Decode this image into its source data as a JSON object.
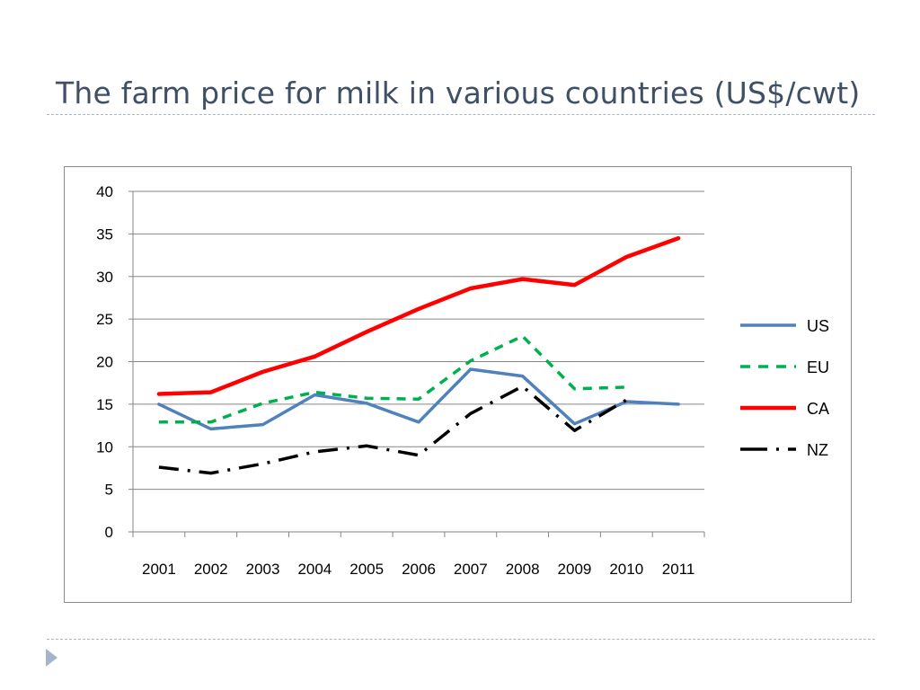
{
  "slide": {
    "title": "The farm price for milk in various countries (US$/cwt)"
  },
  "chart_data": {
    "type": "line",
    "title": "",
    "xlabel": "",
    "ylabel": "",
    "categories": [
      "2001",
      "2002",
      "2003",
      "2004",
      "2005",
      "2006",
      "2007",
      "2008",
      "2009",
      "2010",
      "2011"
    ],
    "ylim": [
      0,
      40
    ],
    "yticks": [
      0,
      5,
      10,
      15,
      20,
      25,
      30,
      35,
      40
    ],
    "grid": true,
    "legend_position": "right",
    "series": [
      {
        "name": "US",
        "color": "#4f81bd",
        "dash": "solid",
        "values": [
          15.0,
          12.1,
          12.6,
          16.1,
          15.1,
          12.9,
          19.1,
          18.3,
          12.7,
          15.3,
          15.0
        ]
      },
      {
        "name": "EU",
        "color": "#00b050",
        "dash": "dash",
        "values": [
          12.9,
          12.9,
          15.1,
          16.4,
          15.7,
          15.6,
          20.1,
          23.0,
          16.8,
          17.0,
          null
        ]
      },
      {
        "name": "CA",
        "color": "#ff0000",
        "dash": "solid",
        "values": [
          16.2,
          16.4,
          18.8,
          20.6,
          23.5,
          26.2,
          28.6,
          29.7,
          29.0,
          32.3,
          34.5
        ]
      },
      {
        "name": "NZ",
        "color": "#000000",
        "dash": "dashdot",
        "values": [
          7.6,
          6.9,
          8.0,
          9.4,
          10.1,
          9.0,
          13.9,
          17.1,
          11.9,
          15.5,
          null
        ]
      }
    ]
  }
}
